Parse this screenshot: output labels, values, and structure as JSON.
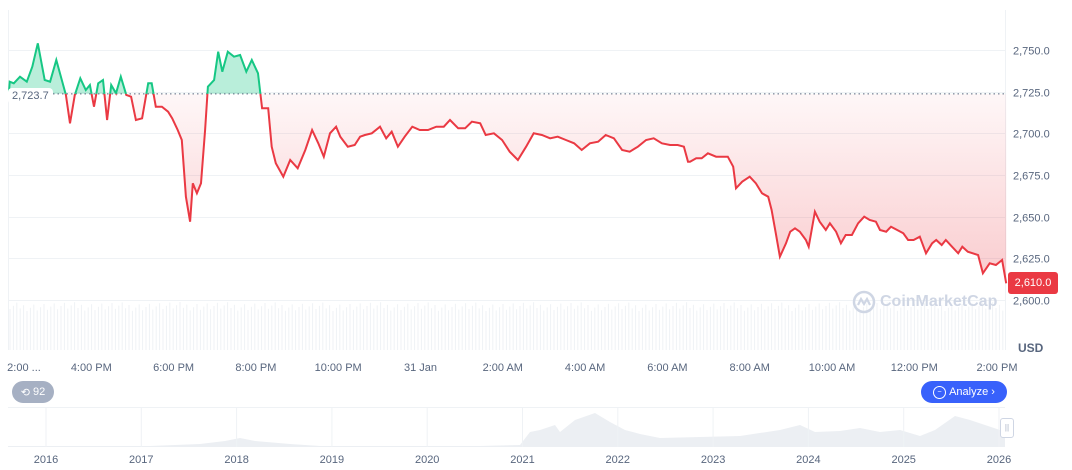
{
  "chart_data": {
    "type": "area",
    "currency": "USD",
    "baseline": 2723.7,
    "baseline_label": "2,723.7",
    "last_price": 2610.0,
    "last_price_label": "2,610.0",
    "up_color": "#16c784",
    "down_color": "#ea3943",
    "ylim": [
      2595,
      2770
    ],
    "grid": true,
    "y_ticks": [
      "2,600.0",
      "2,625.0",
      "2,650.0",
      "2,675.0",
      "2,700.0",
      "2,725.0",
      "2,750.0"
    ],
    "y_tick_values": [
      2600,
      2625,
      2650,
      2675,
      2700,
      2725,
      2750
    ],
    "x_ticks": [
      {
        "label": "2:00 ...",
        "time": "14:00"
      },
      {
        "label": "4:00 PM",
        "time": "16:00"
      },
      {
        "label": "6:00 PM",
        "time": "18:00"
      },
      {
        "label": "8:00 PM",
        "time": "20:00"
      },
      {
        "label": "10:00 PM",
        "time": "22:00"
      },
      {
        "label": "31 Jan",
        "time": "00:00"
      },
      {
        "label": "2:00 AM",
        "time": "02:00"
      },
      {
        "label": "4:00 AM",
        "time": "04:00"
      },
      {
        "label": "6:00 AM",
        "time": "06:00"
      },
      {
        "label": "8:00 AM",
        "time": "08:00"
      },
      {
        "label": "10:00 AM",
        "time": "10:00"
      },
      {
        "label": "12:00 PM",
        "time": "12:00"
      },
      {
        "label": "2:00 PM",
        "time": "14:00"
      }
    ],
    "series": [
      {
        "x": [
          "14:00",
          "14:01",
          "14:07",
          "14:16",
          "14:26",
          "14:34",
          "14:42",
          "14:52",
          "15:00",
          "15:09",
          "15:17",
          "15:23",
          "15:29",
          "15:36",
          "15:44",
          "15:52",
          "15:58",
          "16:04",
          "16:10",
          "16:17",
          "16:23",
          "16:29",
          "16:36",
          "16:43",
          "16:51",
          "16:58",
          "17:05",
          "17:14",
          "17:23",
          "17:28",
          "17:34",
          "17:43",
          "17:52",
          "17:58",
          "18:06",
          "18:12",
          "18:18",
          "18:24",
          "18:28",
          "18:34",
          "18:40",
          "18:46",
          "18:50",
          "18:59",
          "19:05",
          "19:11",
          "19:19",
          "19:28",
          "19:37",
          "19:46",
          "19:54",
          "20:03",
          "20:09",
          "20:18",
          "20:23",
          "20:29",
          "20:40",
          "20:50",
          "21:01",
          "21:12",
          "21:22",
          "21:31",
          "21:39",
          "21:48",
          "21:57",
          "22:03",
          "22:14",
          "22:24",
          "22:32",
          "22:39",
          "22:49",
          "23:01",
          "23:10",
          "23:18",
          "23:27",
          "23:37",
          "23:48",
          "23:59",
          "00:11",
          "00:23",
          "00:34",
          "00:43",
          "00:55",
          "01:05",
          "01:15",
          "01:27",
          "01:35",
          "01:47",
          "01:59",
          "02:10",
          "02:22",
          "02:34",
          "02:45",
          "02:57",
          "03:09",
          "03:20",
          "03:32",
          "03:44",
          "03:55",
          "04:07",
          "04:19",
          "04:30",
          "04:42",
          "04:54",
          "05:05",
          "05:17",
          "05:29",
          "05:40",
          "05:52",
          "06:04",
          "06:15",
          "06:24",
          "06:30",
          "06:33",
          "06:42",
          "06:50",
          "06:59",
          "07:11",
          "07:20",
          "07:28",
          "07:36",
          "07:40",
          "07:49",
          "08:00",
          "08:09",
          "08:18",
          "08:27",
          "08:32",
          "08:38",
          "08:44",
          "08:53",
          "08:59",
          "09:06",
          "09:13",
          "09:22",
          "09:26",
          "09:35",
          "09:42",
          "09:51",
          "09:57",
          "10:06",
          "10:13",
          "10:20",
          "10:29",
          "10:38",
          "10:47",
          "10:55",
          "11:04",
          "11:10",
          "11:19",
          "11:26",
          "11:35",
          "11:44",
          "11:51",
          "11:59",
          "12:08",
          "12:17",
          "12:26",
          "12:32",
          "12:40",
          "12:46",
          "12:55",
          "13:04",
          "13:10",
          "13:18",
          "13:33",
          "13:40",
          "13:50",
          "13:59",
          "14:08",
          "14:14"
        ],
        "values": [
          2725,
          2731,
          2730,
          2734,
          2731,
          2740,
          2754,
          2732,
          2731,
          2744,
          2732,
          2723,
          2706,
          2723,
          2733,
          2726,
          2729,
          2716,
          2730,
          2732,
          2708,
          2729,
          2724,
          2734,
          2723,
          2722,
          2708,
          2709,
          2730,
          2730,
          2716,
          2716,
          2713,
          2709,
          2702,
          2696,
          2662,
          2647,
          2670,
          2664,
          2670,
          2702,
          2728,
          2732,
          2749,
          2737,
          2749,
          2746,
          2747,
          2737,
          2744,
          2736,
          2715,
          2715,
          2692,
          2682,
          2674,
          2684,
          2679,
          2690,
          2702,
          2694,
          2686,
          2700,
          2704,
          2698,
          2692,
          2693,
          2698,
          2699,
          2700,
          2704,
          2697,
          2701,
          2692,
          2698,
          2704,
          2702,
          2702,
          2704,
          2704,
          2708,
          2703,
          2703,
          2707,
          2706,
          2699,
          2700,
          2696,
          2689,
          2684,
          2692,
          2700,
          2699,
          2697,
          2698,
          2696,
          2694,
          2690,
          2694,
          2695,
          2699,
          2697,
          2690,
          2689,
          2692,
          2696,
          2697,
          2694,
          2693,
          2693,
          2692,
          2683,
          2683,
          2685,
          2685,
          2688,
          2686,
          2686,
          2686,
          2680,
          2667,
          2671,
          2674,
          2670,
          2664,
          2662,
          2654,
          2640,
          2626,
          2634,
          2641,
          2643,
          2641,
          2636,
          2632,
          2653,
          2647,
          2642,
          2646,
          2641,
          2634,
          2639,
          2639,
          2646,
          2650,
          2648,
          2647,
          2642,
          2641,
          2644,
          2642,
          2640,
          2636,
          2636,
          2638,
          2628,
          2634,
          2636,
          2633,
          2636,
          2632,
          2628,
          2632,
          2629,
          2627,
          2616,
          2622,
          2621,
          2624,
          2610
        ]
      }
    ],
    "navigator": {
      "x_ticks": [
        "2016",
        "2017",
        "2018",
        "2019",
        "2020",
        "2021",
        "2022",
        "2023",
        "2024",
        "2025",
        "2026"
      ]
    }
  },
  "controls": {
    "history_count": "92",
    "analyze_label": "Analyze",
    "history_icon": "history-icon",
    "analyze_icon": "ai-analyze-icon"
  },
  "watermark": "CoinMarketCap"
}
